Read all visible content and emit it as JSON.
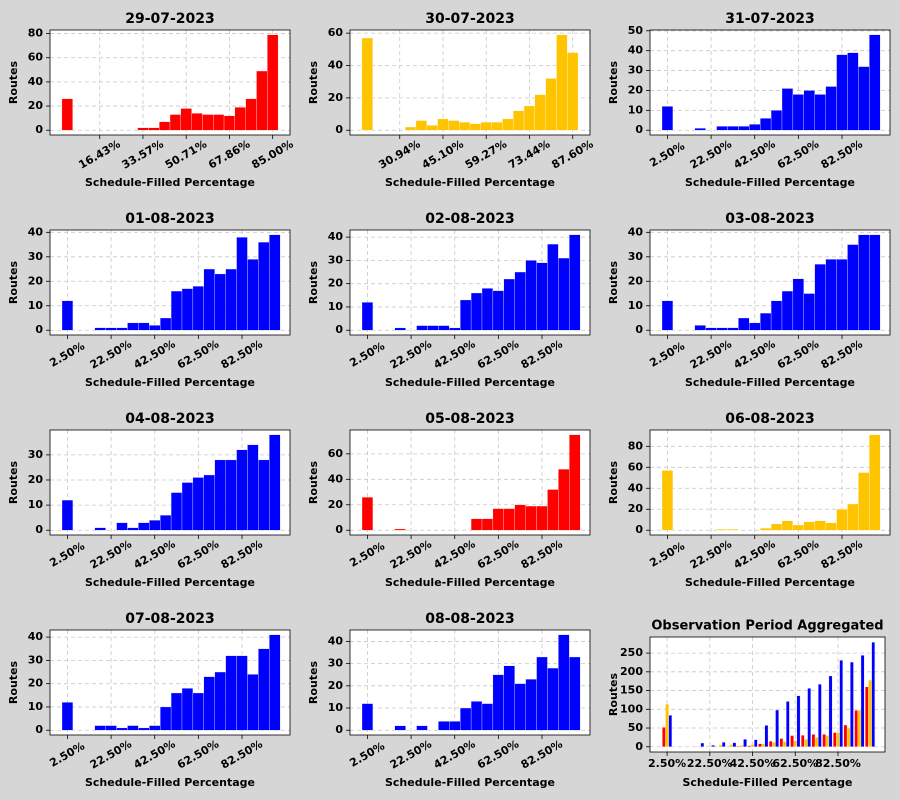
{
  "chart_data": [
    {
      "type": "histogram",
      "title": "29-07-2023",
      "xlabel": "Schedule-Filled Percentage",
      "ylabel": "Routes",
      "color": "#ff0000",
      "grid": true,
      "bins": [
        1.43,
        5.71,
        10,
        14.29,
        18.57,
        22.86,
        27.14,
        31.43,
        35.71,
        40,
        44.29,
        48.57,
        52.86,
        57.14,
        61.43,
        65.71,
        70,
        74.29,
        78.57,
        82.86,
        87.14
      ],
      "values": [
        26,
        0,
        0,
        0,
        0,
        0,
        0,
        2,
        2,
        7,
        13,
        18,
        14,
        13,
        13,
        12,
        19,
        26,
        49,
        79
      ],
      "xlim": [
        -3.29,
        91.86
      ],
      "xticks": [
        {
          "value": 16.43,
          "label": "16.43%"
        },
        {
          "value": 33.57,
          "label": "33.57%"
        },
        {
          "value": 50.71,
          "label": "50.71%"
        },
        {
          "value": 67.86,
          "label": "67.86%"
        },
        {
          "value": 85,
          "label": "85.00%"
        }
      ],
      "ylim": [
        -3.95,
        82.95
      ],
      "yticks": [
        0,
        20,
        40,
        60,
        80
      ]
    },
    {
      "type": "histogram",
      "title": "30-07-2023",
      "xlabel": "Schedule-Filled Percentage",
      "ylabel": "Routes",
      "color": "#ffc400",
      "grid": true,
      "bins": [
        18.55,
        22.09,
        25.63,
        29.17,
        32.71,
        36.25,
        39.79,
        43.33,
        46.87,
        50.41,
        53.95,
        57.49,
        61.03,
        64.57,
        68.11,
        71.65,
        75.19,
        78.73,
        82.27,
        85.81,
        89.35
      ],
      "values": [
        57,
        0,
        0,
        0,
        2,
        6,
        3,
        7,
        6,
        5,
        4,
        5,
        5,
        7,
        12,
        15,
        22,
        32,
        59,
        48
      ],
      "xlim": [
        14.65,
        93.25
      ],
      "xticks": [
        {
          "value": 30.94,
          "label": "30.94%"
        },
        {
          "value": 45.1,
          "label": "45.10%"
        },
        {
          "value": 59.27,
          "label": "59.27%"
        },
        {
          "value": 73.44,
          "label": "73.44%"
        },
        {
          "value": 87.6,
          "label": "87.60%"
        }
      ],
      "ylim": [
        -2.95,
        61.95
      ],
      "yticks": [
        0,
        20,
        40,
        60
      ]
    },
    {
      "type": "histogram",
      "title": "31-07-2023",
      "xlabel": "Schedule-Filled Percentage",
      "ylabel": "Routes",
      "color": "#0000ff",
      "grid": true,
      "bins": [
        0,
        5,
        10,
        15,
        20,
        25,
        30,
        35,
        40,
        45,
        50,
        55,
        60,
        65,
        70,
        75,
        80,
        85,
        90,
        95,
        100
      ],
      "values": [
        12,
        0,
        0,
        1,
        0,
        2,
        2,
        2,
        3,
        6,
        10,
        21,
        18,
        20,
        18,
        22,
        38,
        39,
        32,
        48
      ],
      "xlim": [
        -5.5,
        104.5
      ],
      "xticks": [
        {
          "value": 2.5,
          "label": "2.50%"
        },
        {
          "value": 22.5,
          "label": "22.50%"
        },
        {
          "value": 42.5,
          "label": "42.50%"
        },
        {
          "value": 62.5,
          "label": "62.50%"
        },
        {
          "value": 82.5,
          "label": "82.50%"
        }
      ],
      "ylim": [
        -2.4,
        50.4
      ],
      "yticks": [
        0,
        10,
        20,
        30,
        40,
        50
      ]
    },
    {
      "type": "histogram",
      "title": "01-08-2023",
      "xlabel": "Schedule-Filled Percentage",
      "ylabel": "Routes",
      "color": "#0000ff",
      "grid": true,
      "bins": [
        0,
        5,
        10,
        15,
        20,
        25,
        30,
        35,
        40,
        45,
        50,
        55,
        60,
        65,
        70,
        75,
        80,
        85,
        90,
        95,
        100
      ],
      "values": [
        12,
        0,
        0,
        1,
        1,
        1,
        3,
        3,
        2,
        5,
        16,
        17,
        18,
        25,
        23,
        25,
        38,
        29,
        36,
        39
      ],
      "xlim": [
        -5.5,
        104.5
      ],
      "xticks": [
        {
          "value": 2.5,
          "label": "2.50%"
        },
        {
          "value": 22.5,
          "label": "22.50%"
        },
        {
          "value": 42.5,
          "label": "42.50%"
        },
        {
          "value": 62.5,
          "label": "62.50%"
        },
        {
          "value": 82.5,
          "label": "82.50%"
        }
      ],
      "ylim": [
        -1.95,
        40.95
      ],
      "yticks": [
        0,
        10,
        20,
        30,
        40
      ]
    },
    {
      "type": "histogram",
      "title": "02-08-2023",
      "xlabel": "Schedule-Filled Percentage",
      "ylabel": "Routes",
      "color": "#0000ff",
      "grid": true,
      "bins": [
        0,
        5,
        10,
        15,
        20,
        25,
        30,
        35,
        40,
        45,
        50,
        55,
        60,
        65,
        70,
        75,
        80,
        85,
        90,
        95,
        100
      ],
      "values": [
        12,
        0,
        0,
        1,
        0,
        2,
        2,
        2,
        1,
        13,
        16,
        18,
        17,
        22,
        25,
        30,
        29,
        37,
        31,
        41
      ],
      "xlim": [
        -5.5,
        104.5
      ],
      "xticks": [
        {
          "value": 2.5,
          "label": "2.50%"
        },
        {
          "value": 22.5,
          "label": "22.50%"
        },
        {
          "value": 42.5,
          "label": "42.50%"
        },
        {
          "value": 62.5,
          "label": "62.50%"
        },
        {
          "value": 82.5,
          "label": "82.50%"
        }
      ],
      "ylim": [
        -2.05,
        43.05
      ],
      "yticks": [
        0,
        10,
        20,
        30,
        40
      ]
    },
    {
      "type": "histogram",
      "title": "03-08-2023",
      "xlabel": "Schedule-Filled Percentage",
      "ylabel": "Routes",
      "color": "#0000ff",
      "grid": true,
      "bins": [
        0,
        5,
        10,
        15,
        20,
        25,
        30,
        35,
        40,
        45,
        50,
        55,
        60,
        65,
        70,
        75,
        80,
        85,
        90,
        95,
        100
      ],
      "values": [
        12,
        0,
        0,
        2,
        1,
        1,
        1,
        5,
        3,
        7,
        12,
        16,
        21,
        15,
        27,
        29,
        29,
        35,
        39,
        39
      ],
      "xlim": [
        -5.5,
        104.5
      ],
      "xticks": [
        {
          "value": 2.5,
          "label": "2.50%"
        },
        {
          "value": 22.5,
          "label": "22.50%"
        },
        {
          "value": 42.5,
          "label": "42.50%"
        },
        {
          "value": 62.5,
          "label": "62.50%"
        },
        {
          "value": 82.5,
          "label": "82.50%"
        }
      ],
      "ylim": [
        -1.95,
        40.95
      ],
      "yticks": [
        0,
        10,
        20,
        30,
        40
      ]
    },
    {
      "type": "histogram",
      "title": "04-08-2023",
      "xlabel": "Schedule-Filled Percentage",
      "ylabel": "Routes",
      "color": "#0000ff",
      "grid": true,
      "bins": [
        0,
        5,
        10,
        15,
        20,
        25,
        30,
        35,
        40,
        45,
        50,
        55,
        60,
        65,
        70,
        75,
        80,
        85,
        90,
        95,
        100
      ],
      "values": [
        12,
        0,
        0,
        1,
        0,
        3,
        1,
        3,
        4,
        6,
        15,
        19,
        21,
        22,
        28,
        28,
        32,
        34,
        28,
        38
      ],
      "xlim": [
        -5.5,
        104.5
      ],
      "xticks": [
        {
          "value": 2.5,
          "label": "2.50%"
        },
        {
          "value": 22.5,
          "label": "22.50%"
        },
        {
          "value": 42.5,
          "label": "42.50%"
        },
        {
          "value": 62.5,
          "label": "62.50%"
        },
        {
          "value": 82.5,
          "label": "82.50%"
        }
      ],
      "ylim": [
        -1.9,
        39.9
      ],
      "yticks": [
        0,
        10,
        20,
        30
      ]
    },
    {
      "type": "histogram",
      "title": "05-08-2023",
      "xlabel": "Schedule-Filled Percentage",
      "ylabel": "Routes",
      "color": "#ff0000",
      "grid": true,
      "bins": [
        0,
        5,
        10,
        15,
        20,
        25,
        30,
        35,
        40,
        45,
        50,
        55,
        60,
        65,
        70,
        75,
        80,
        85,
        90,
        95,
        100
      ],
      "values": [
        26,
        0,
        0,
        1,
        0,
        0,
        0,
        0,
        0,
        0,
        9,
        9,
        17,
        17,
        20,
        19,
        19,
        32,
        48,
        75
      ],
      "xlim": [
        -5.5,
        104.5
      ],
      "xticks": [
        {
          "value": 2.5,
          "label": "2.50%"
        },
        {
          "value": 22.5,
          "label": "22.50%"
        },
        {
          "value": 42.5,
          "label": "42.50%"
        },
        {
          "value": 62.5,
          "label": "62.50%"
        },
        {
          "value": 82.5,
          "label": "82.50%"
        }
      ],
      "ylim": [
        -3.75,
        78.75
      ],
      "yticks": [
        0,
        20,
        40,
        60
      ]
    },
    {
      "type": "histogram",
      "title": "06-08-2023",
      "xlabel": "Schedule-Filled Percentage",
      "ylabel": "Routes",
      "color": "#ffc400",
      "grid": true,
      "bins": [
        0,
        5,
        10,
        15,
        20,
        25,
        30,
        35,
        40,
        45,
        50,
        55,
        60,
        65,
        70,
        75,
        80,
        85,
        90,
        95,
        100
      ],
      "values": [
        57,
        0,
        0,
        0,
        0,
        1,
        1,
        0,
        0,
        2,
        6,
        9,
        5,
        8,
        9,
        7,
        20,
        25,
        55,
        91
      ],
      "xlim": [
        -5.5,
        104.5
      ],
      "xticks": [
        {
          "value": 2.5,
          "label": "2.50%"
        },
        {
          "value": 22.5,
          "label": "22.50%"
        },
        {
          "value": 42.5,
          "label": "42.50%"
        },
        {
          "value": 62.5,
          "label": "62.50%"
        },
        {
          "value": 82.5,
          "label": "82.50%"
        }
      ],
      "ylim": [
        -4.55,
        95.55
      ],
      "yticks": [
        0,
        20,
        40,
        60,
        80
      ]
    },
    {
      "type": "histogram",
      "title": "07-08-2023",
      "xlabel": "Schedule-Filled Percentage",
      "ylabel": "Routes",
      "color": "#0000ff",
      "grid": true,
      "bins": [
        0,
        5,
        10,
        15,
        20,
        25,
        30,
        35,
        40,
        45,
        50,
        55,
        60,
        65,
        70,
        75,
        80,
        85,
        90,
        95,
        100
      ],
      "values": [
        12,
        0,
        0,
        2,
        2,
        1,
        2,
        1,
        2,
        10,
        16,
        18,
        16,
        23,
        25,
        32,
        32,
        24,
        35,
        41
      ],
      "xlim": [
        -5.5,
        104.5
      ],
      "xticks": [
        {
          "value": 2.5,
          "label": "2.50%"
        },
        {
          "value": 22.5,
          "label": "22.50%"
        },
        {
          "value": 42.5,
          "label": "42.50%"
        },
        {
          "value": 62.5,
          "label": "62.50%"
        },
        {
          "value": 82.5,
          "label": "82.50%"
        }
      ],
      "ylim": [
        -2.05,
        43.05
      ],
      "yticks": [
        0,
        10,
        20,
        30,
        40
      ]
    },
    {
      "type": "histogram",
      "title": "08-08-2023",
      "xlabel": "Schedule-Filled Percentage",
      "ylabel": "Routes",
      "color": "#0000ff",
      "grid": true,
      "bins": [
        0,
        5,
        10,
        15,
        20,
        25,
        30,
        35,
        40,
        45,
        50,
        55,
        60,
        65,
        70,
        75,
        80,
        85,
        90,
        95,
        100
      ],
      "values": [
        12,
        0,
        0,
        2,
        0,
        2,
        0,
        4,
        4,
        10,
        13,
        12,
        25,
        29,
        21,
        23,
        33,
        28,
        43,
        33
      ],
      "xlim": [
        -5.5,
        104.5
      ],
      "xticks": [
        {
          "value": 2.5,
          "label": "2.50%"
        },
        {
          "value": 22.5,
          "label": "22.50%"
        },
        {
          "value": 42.5,
          "label": "42.50%"
        },
        {
          "value": 62.5,
          "label": "62.50%"
        },
        {
          "value": 82.5,
          "label": "82.50%"
        }
      ],
      "ylim": [
        -2.15,
        45.15
      ],
      "yticks": [
        0,
        10,
        20,
        30,
        40
      ]
    },
    {
      "type": "histogram",
      "title": "Observation Period Aggregated",
      "xlabel": "Schedule-Filled Percentage",
      "ylabel": "Routes",
      "grid": true,
      "bins": [
        0,
        5,
        10,
        15,
        20,
        25,
        30,
        35,
        40,
        45,
        50,
        55,
        60,
        65,
        70,
        75,
        80,
        85,
        90,
        95,
        100
      ],
      "series": [
        {
          "color": "#ff0000",
          "values": [
            52,
            0,
            0,
            1,
            0,
            0,
            0,
            2,
            3,
            8,
            15,
            22,
            30,
            31,
            33,
            33,
            38,
            58,
            97,
            160
          ]
        },
        {
          "color": "#ffc400",
          "values": [
            114,
            0,
            0,
            1,
            2,
            5,
            6,
            4,
            6,
            8,
            12,
            14,
            16,
            20,
            25,
            30,
            38,
            50,
            98,
            178
          ]
        },
        {
          "color": "#0000ff",
          "values": [
            84,
            0,
            0,
            10,
            4,
            12,
            11,
            20,
            19,
            57,
            98,
            121,
            136,
            156,
            167,
            189,
            231,
            226,
            244,
            279
          ]
        }
      ],
      "xlim": [
        -5.5,
        104.5
      ],
      "xticks": [
        {
          "value": 2.5,
          "label": "2.50%"
        },
        {
          "value": 22.5,
          "label": "22.50%"
        },
        {
          "value": 42.5,
          "label": "42.50%"
        },
        {
          "value": 62.5,
          "label": "62.50%"
        },
        {
          "value": 82.5,
          "label": "82.50%"
        }
      ],
      "ylim": [
        -13.95,
        292.95
      ],
      "yticks": [
        0,
        50,
        100,
        150,
        200,
        250
      ]
    }
  ]
}
